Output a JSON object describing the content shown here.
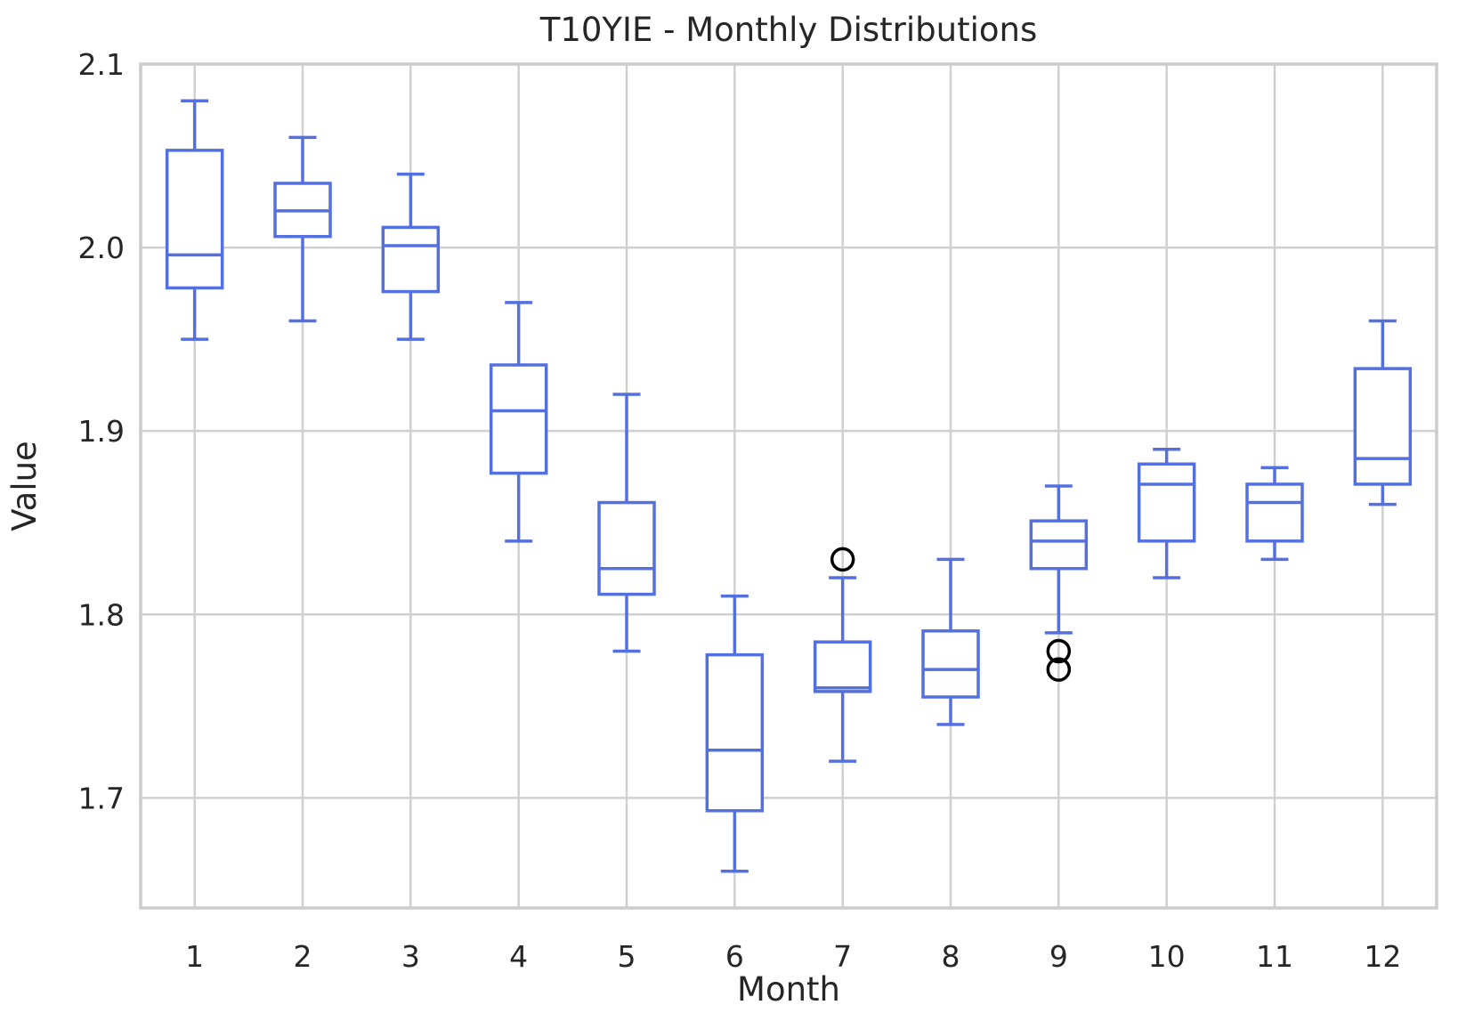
{
  "chart_data": {
    "type": "boxplot",
    "title": "T10YIE - Monthly Distributions",
    "xlabel": "Month",
    "ylabel": "Value",
    "ylim": [
      1.64,
      2.1
    ],
    "yticks": [
      "1.7",
      "1.8",
      "1.9",
      "2.0",
      "2.1"
    ],
    "grid": true,
    "box_color": "#5470e0",
    "outlier_color": "#000000",
    "categories": [
      "1",
      "2",
      "3",
      "4",
      "5",
      "6",
      "7",
      "8",
      "9",
      "10",
      "11",
      "12"
    ],
    "boxes": [
      {
        "month": "1",
        "whisker_low": 1.95,
        "q1": 1.978,
        "median": 1.996,
        "q3": 2.053,
        "whisker_high": 2.08,
        "outliers": []
      },
      {
        "month": "2",
        "whisker_low": 1.96,
        "q1": 2.006,
        "median": 2.02,
        "q3": 2.035,
        "whisker_high": 2.06,
        "outliers": []
      },
      {
        "month": "3",
        "whisker_low": 1.95,
        "q1": 1.976,
        "median": 2.001,
        "q3": 2.011,
        "whisker_high": 2.04,
        "outliers": []
      },
      {
        "month": "4",
        "whisker_low": 1.84,
        "q1": 1.877,
        "median": 1.911,
        "q3": 1.936,
        "whisker_high": 1.97,
        "outliers": []
      },
      {
        "month": "5",
        "whisker_low": 1.78,
        "q1": 1.811,
        "median": 1.825,
        "q3": 1.861,
        "whisker_high": 1.92,
        "outliers": []
      },
      {
        "month": "6",
        "whisker_low": 1.66,
        "q1": 1.693,
        "median": 1.726,
        "q3": 1.778,
        "whisker_high": 1.81,
        "outliers": []
      },
      {
        "month": "7",
        "whisker_low": 1.72,
        "q1": 1.758,
        "median": 1.76,
        "q3": 1.785,
        "whisker_high": 1.82,
        "outliers": [
          1.83
        ]
      },
      {
        "month": "8",
        "whisker_low": 1.74,
        "q1": 1.755,
        "median": 1.77,
        "q3": 1.791,
        "whisker_high": 1.83,
        "outliers": []
      },
      {
        "month": "9",
        "whisker_low": 1.79,
        "q1": 1.825,
        "median": 1.84,
        "q3": 1.851,
        "whisker_high": 1.87,
        "outliers": [
          1.78,
          1.77
        ]
      },
      {
        "month": "10",
        "whisker_low": 1.82,
        "q1": 1.84,
        "median": 1.871,
        "q3": 1.882,
        "whisker_high": 1.89,
        "outliers": []
      },
      {
        "month": "11",
        "whisker_low": 1.83,
        "q1": 1.84,
        "median": 1.861,
        "q3": 1.871,
        "whisker_high": 1.88,
        "outliers": []
      },
      {
        "month": "12",
        "whisker_low": 1.86,
        "q1": 1.871,
        "median": 1.885,
        "q3": 1.934,
        "whisker_high": 1.96,
        "outliers": []
      }
    ]
  }
}
